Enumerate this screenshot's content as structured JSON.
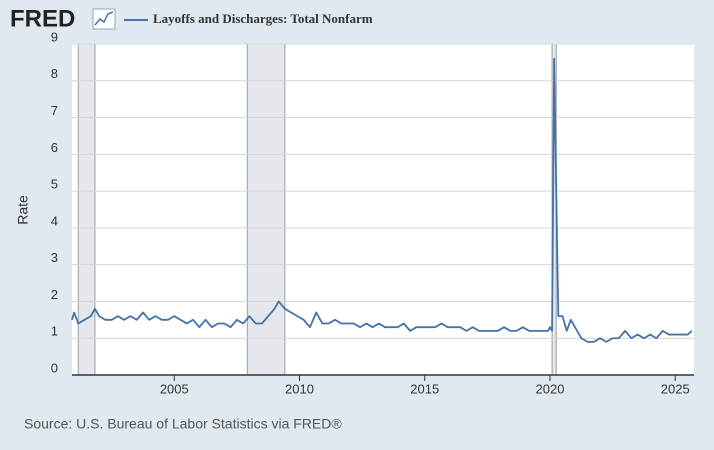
{
  "logo": "FRED",
  "chart_data": {
    "type": "line",
    "title": "Layoffs and Discharges: Total Nonfarm",
    "ylabel": "Rate",
    "source": "Source: U.S. Bureau of Labor Statistics via FRED®",
    "xlim": [
      "2000-12",
      "2025-10"
    ],
    "xticks": [
      2005,
      2010,
      2015,
      2020,
      2025
    ],
    "ylim": [
      0,
      9
    ],
    "yticks": [
      0,
      1,
      2,
      3,
      4,
      5,
      6,
      7,
      8,
      9
    ],
    "grid": true,
    "recessions": [
      [
        "2001-03",
        "2001-11"
      ],
      [
        "2007-12",
        "2009-06"
      ],
      [
        "2020-02",
        "2020-04"
      ]
    ],
    "x": [
      "2000-12",
      "2001-01",
      "2001-03",
      "2001-06",
      "2001-09",
      "2001-11",
      "2002-01",
      "2002-04",
      "2002-07",
      "2002-10",
      "2003-01",
      "2003-04",
      "2003-07",
      "2003-10",
      "2004-01",
      "2004-04",
      "2004-07",
      "2004-10",
      "2005-01",
      "2005-04",
      "2005-07",
      "2005-10",
      "2006-01",
      "2006-04",
      "2006-07",
      "2006-10",
      "2007-01",
      "2007-04",
      "2007-07",
      "2007-10",
      "2008-01",
      "2008-04",
      "2008-07",
      "2008-10",
      "2009-01",
      "2009-03",
      "2009-06",
      "2009-09",
      "2009-12",
      "2010-03",
      "2010-06",
      "2010-09",
      "2010-12",
      "2011-03",
      "2011-06",
      "2011-09",
      "2011-12",
      "2012-03",
      "2012-06",
      "2012-09",
      "2012-12",
      "2013-03",
      "2013-06",
      "2013-09",
      "2013-12",
      "2014-03",
      "2014-06",
      "2014-09",
      "2014-12",
      "2015-03",
      "2015-06",
      "2015-09",
      "2015-12",
      "2016-03",
      "2016-06",
      "2016-09",
      "2016-12",
      "2017-03",
      "2017-06",
      "2017-09",
      "2017-12",
      "2018-03",
      "2018-06",
      "2018-09",
      "2018-12",
      "2019-03",
      "2019-06",
      "2019-09",
      "2019-12",
      "2020-01",
      "2020-02",
      "2020-03",
      "2020-04",
      "2020-05",
      "2020-07",
      "2020-09",
      "2020-11",
      "2021-01",
      "2021-04",
      "2021-07",
      "2021-10",
      "2022-01",
      "2022-04",
      "2022-07",
      "2022-10",
      "2023-01",
      "2023-04",
      "2023-07",
      "2023-10",
      "2024-01",
      "2024-04",
      "2024-07",
      "2024-10",
      "2025-01",
      "2025-04",
      "2025-07",
      "2025-09"
    ],
    "series": [
      {
        "name": "Layoffs and Discharges: Total Nonfarm",
        "color": "#4572a7",
        "values": [
          1.5,
          1.7,
          1.4,
          1.5,
          1.6,
          1.8,
          1.6,
          1.5,
          1.5,
          1.6,
          1.5,
          1.6,
          1.5,
          1.7,
          1.5,
          1.6,
          1.5,
          1.5,
          1.6,
          1.5,
          1.4,
          1.5,
          1.3,
          1.5,
          1.3,
          1.4,
          1.4,
          1.3,
          1.5,
          1.4,
          1.6,
          1.4,
          1.4,
          1.6,
          1.8,
          2.0,
          1.8,
          1.7,
          1.6,
          1.5,
          1.3,
          1.7,
          1.4,
          1.4,
          1.5,
          1.4,
          1.4,
          1.4,
          1.3,
          1.4,
          1.3,
          1.4,
          1.3,
          1.3,
          1.3,
          1.4,
          1.2,
          1.3,
          1.3,
          1.3,
          1.3,
          1.4,
          1.3,
          1.3,
          1.3,
          1.2,
          1.3,
          1.2,
          1.2,
          1.2,
          1.2,
          1.3,
          1.2,
          1.2,
          1.3,
          1.2,
          1.2,
          1.2,
          1.2,
          1.3,
          1.2,
          8.6,
          5.0,
          1.6,
          1.6,
          1.2,
          1.5,
          1.3,
          1.0,
          0.9,
          0.9,
          1.0,
          0.9,
          1.0,
          1.0,
          1.2,
          1.0,
          1.1,
          1.0,
          1.1,
          1.0,
          1.2,
          1.1,
          1.1,
          1.1,
          1.1,
          1.2
        ]
      }
    ]
  }
}
